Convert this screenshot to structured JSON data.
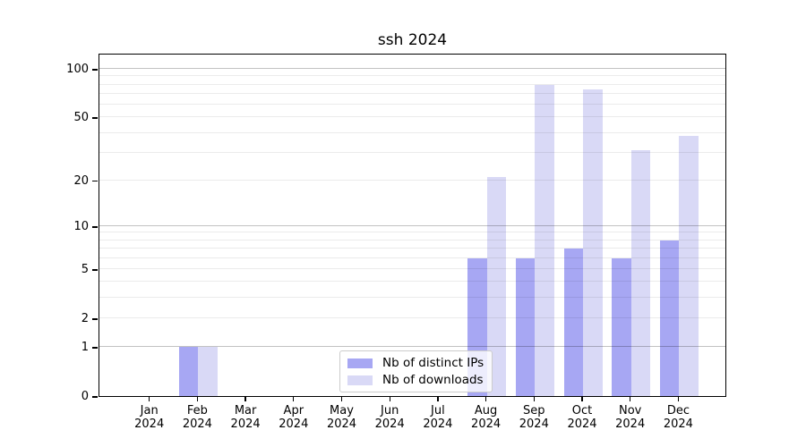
{
  "title": "ssh 2024",
  "chart_data": {
    "type": "bar",
    "title": "ssh 2024",
    "categories": [
      "Jan",
      "Feb",
      "Mar",
      "Apr",
      "May",
      "Jun",
      "Jul",
      "Aug",
      "Sep",
      "Oct",
      "Nov",
      "Dec"
    ],
    "year": "2024",
    "series": [
      {
        "name": "Nb of distinct IPs",
        "color": "#a7a7f3",
        "values": [
          0,
          1,
          0,
          0,
          0,
          0,
          0,
          6,
          6,
          7,
          6,
          8
        ]
      },
      {
        "name": "Nb of downloads",
        "color": "#d9d9f6",
        "values": [
          0,
          1,
          0,
          0,
          0,
          0,
          0,
          21,
          80,
          75,
          31,
          38
        ]
      }
    ],
    "yscale": "log1p",
    "ylim": [
      0,
      124
    ],
    "yticks": [
      0,
      1,
      2,
      5,
      10,
      20,
      50,
      100
    ],
    "minor_gridlines": [
      2,
      3,
      4,
      5,
      6,
      7,
      8,
      9,
      20,
      30,
      40,
      50,
      60,
      70,
      80,
      90
    ],
    "major_gridlines": [
      1,
      10,
      100
    ],
    "grid": true,
    "legend_position": "lower center"
  }
}
